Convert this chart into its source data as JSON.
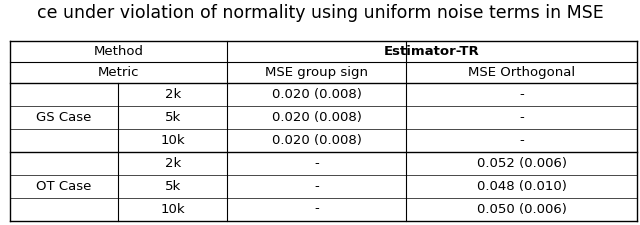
{
  "title": "ce under violation of normality using uniform noise terms in MSE",
  "title_fontsize": 12.5,
  "row_groups": [
    {
      "group_label": "GS Case",
      "rows": [
        {
          "sample": "2k",
          "mse_group": "0.020 (0.008)",
          "mse_ortho": "-"
        },
        {
          "sample": "5k",
          "mse_group": "0.020 (0.008)",
          "mse_ortho": "-"
        },
        {
          "sample": "10k",
          "mse_group": "0.020 (0.008)",
          "mse_ortho": "-"
        }
      ]
    },
    {
      "group_label": "OT Case",
      "rows": [
        {
          "sample": "2k",
          "mse_group": "-",
          "mse_ortho": "0.052 (0.006)"
        },
        {
          "sample": "5k",
          "mse_group": "-",
          "mse_ortho": "0.048 (0.010)"
        },
        {
          "sample": "10k",
          "mse_group": "-",
          "mse_ortho": "0.050 (0.006)"
        }
      ]
    }
  ],
  "bg_color": "white",
  "text_color": "black",
  "line_color": "black",
  "font_size": 9.5,
  "header_font_size": 9.5
}
